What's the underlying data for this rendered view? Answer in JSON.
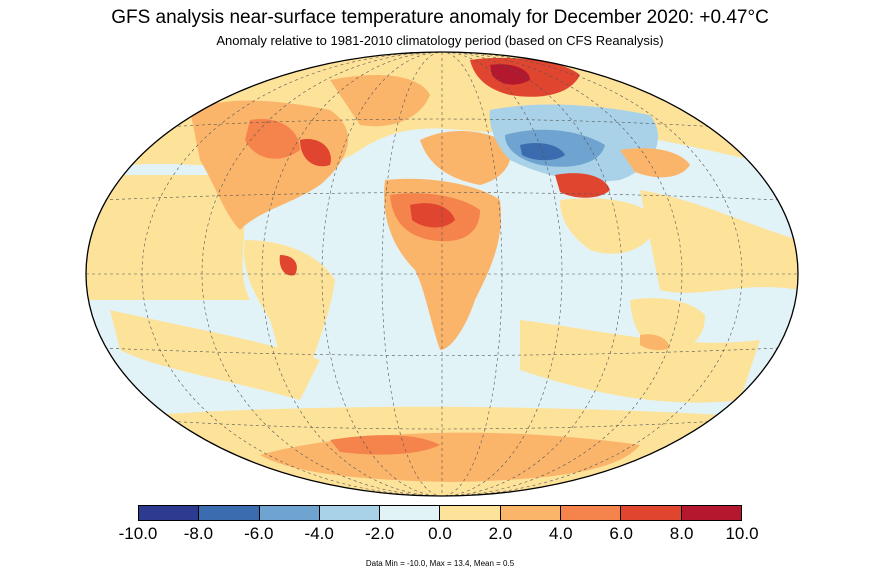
{
  "header": {
    "title": "GFS analysis near-surface temperature anomaly for December 2020: +0.47°C",
    "subtitle": "Anomaly relative to 1981-2010 climatology period (based on CFS Reanalysis)"
  },
  "colorbar": {
    "colors": [
      "#2c3a8f",
      "#3b6cb0",
      "#6fa3d0",
      "#a9d2e8",
      "#e2f3f8",
      "#fde29a",
      "#fbb56b",
      "#f5844c",
      "#e0452f",
      "#b3182e"
    ],
    "tick_labels": [
      "-10.0",
      "-8.0",
      "-6.0",
      "-4.0",
      "-2.0",
      "0.0",
      "2.0",
      "4.0",
      "6.0",
      "8.0",
      "10.0"
    ],
    "min": -10,
    "max": 10
  },
  "stats": "Data Min = -10.0, Max = 13.4, Mean = 0.5"
}
